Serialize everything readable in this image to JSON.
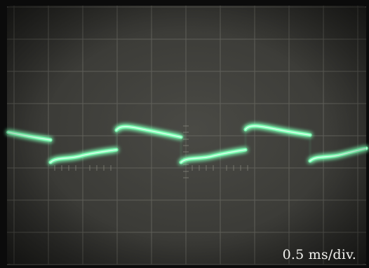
{
  "screen": {
    "timebase_label": "0.5 ms/div."
  },
  "colors": {
    "trace": "#7dffb4",
    "screen": "#3a3a36",
    "grid": "#6b6b64",
    "bezel": "#0b0b0b",
    "label": "#f2f2ee"
  }
}
